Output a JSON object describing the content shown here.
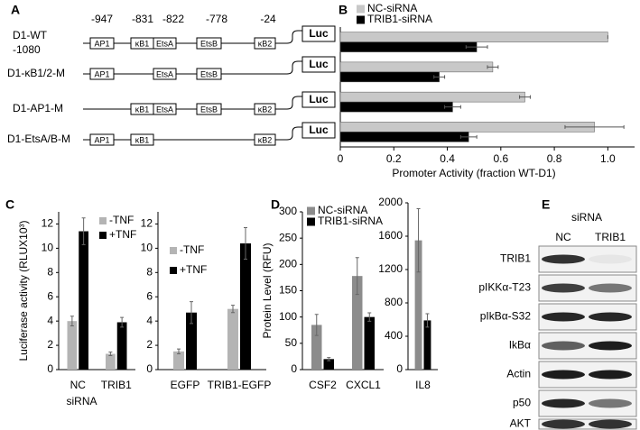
{
  "panel_labels": [
    "A",
    "B",
    "C",
    "D",
    "E"
  ],
  "diagram": {
    "positions": [
      "-947",
      "-831",
      "-822",
      "-778",
      "-24"
    ],
    "constructs": [
      {
        "name": "D1-WT",
        "start": "-1080",
        "elements": [
          "AP1",
          "κB1",
          "EtsA",
          "EtsB",
          "κB2"
        ]
      },
      {
        "name": "D1-κB1/2-M",
        "elements": [
          "AP1",
          "EtsA",
          "EtsB"
        ]
      },
      {
        "name": "D1-AP1-M",
        "elements": [
          "κB1",
          "EtsA",
          "EtsB",
          "κB2"
        ]
      },
      {
        "name": "D1-EtsA/B-M",
        "elements": [
          "AP1",
          "κB1",
          "κB2"
        ]
      }
    ],
    "reporter": "Luc"
  },
  "chart_data": [
    {
      "type": "bar",
      "orientation": "horizontal",
      "legend": true,
      "xlabel": "Promoter Activity (fraction WT-D1)",
      "categories": [
        null,
        null,
        null,
        null
      ],
      "series": [
        {
          "name": "NC-siRNA",
          "color": "#c8c8c8",
          "values": [
            1.0,
            0.57,
            0.69,
            0.95
          ],
          "errors": [
            0,
            0.02,
            0.02,
            0.11
          ]
        },
        {
          "name": "TRIB1-siRNA",
          "color": "#000000",
          "values": [
            0.51,
            0.37,
            0.42,
            0.48
          ],
          "errors": [
            0.04,
            0.02,
            0.03,
            0.03
          ]
        }
      ],
      "xlim": [
        0,
        1.1
      ],
      "xticks": [
        0,
        0.2,
        0.4,
        0.6,
        0.8,
        {
          "value": 1,
          "label": "1.0"
        }
      ]
    },
    {
      "type": "bar",
      "legend": true,
      "ylabel": "Luciferase activity (RLUX10³)",
      "xlabel": "siRNA",
      "categories": [
        "NC",
        "TRIB1"
      ],
      "series": [
        {
          "name": "-TNF",
          "color": "#b4b4b4",
          "values": [
            4.0,
            1.3
          ],
          "errors": [
            0.4,
            0.15
          ]
        },
        {
          "name": "+TNF",
          "color": "#000000",
          "values": [
            11.4,
            3.9
          ],
          "errors": [
            1.1,
            0.4
          ]
        }
      ],
      "ylim": [
        0,
        13
      ],
      "yticks": [
        0,
        2,
        4,
        6,
        8,
        10,
        12
      ]
    },
    {
      "type": "bar",
      "legend": true,
      "categories": [
        "EGFP",
        "TRIB1-EGFP"
      ],
      "series": [
        {
          "name": "-TNF",
          "color": "#b4b4b4",
          "values": [
            1.5,
            5.0
          ],
          "errors": [
            0.2,
            0.3
          ]
        },
        {
          "name": "+TNF",
          "color": "#000000",
          "values": [
            4.7,
            10.4
          ],
          "errors": [
            0.9,
            1.3
          ]
        }
      ],
      "ylim": [
        0,
        13
      ],
      "yticks": [
        0,
        2,
        4,
        6,
        8,
        10,
        12
      ]
    },
    {
      "type": "bar",
      "legend": true,
      "ylabel": "Protein Level (RFU)",
      "categories": [
        "CSF2",
        "CXCL1"
      ],
      "series": [
        {
          "name": "NC-siRNA",
          "color": "#8c8c8c",
          "values": [
            85,
            178
          ],
          "errors": [
            20,
            35
          ]
        },
        {
          "name": "TRIB1-siRNA",
          "color": "#000000",
          "values": [
            20,
            100
          ],
          "errors": [
            3,
            8
          ]
        }
      ],
      "ylim": [
        0,
        300
      ],
      "yticks": [
        0,
        50,
        100,
        150,
        200,
        250,
        300
      ]
    },
    {
      "type": "bar",
      "legend": false,
      "categories": [
        "IL8"
      ],
      "series": [
        {
          "name": "NC-siRNA",
          "color": "#8c8c8c",
          "values": [
            1550
          ],
          "errors": [
            380
          ]
        },
        {
          "name": "TRIB1-siRNA",
          "color": "#000000",
          "values": [
            590
          ],
          "errors": [
            80
          ]
        }
      ],
      "ylim": [
        0,
        2000
      ],
      "yticks": [
        0,
        400,
        800,
        1200,
        1600,
        2000
      ]
    }
  ],
  "blot": {
    "header": "siRNA",
    "columns": [
      "NC",
      "TRIB1"
    ],
    "rows": [
      "TRIB1",
      "pIKKα-T23",
      "pIkBα-S32",
      "IkBα",
      "Actin",
      "p50",
      "AKT"
    ]
  }
}
